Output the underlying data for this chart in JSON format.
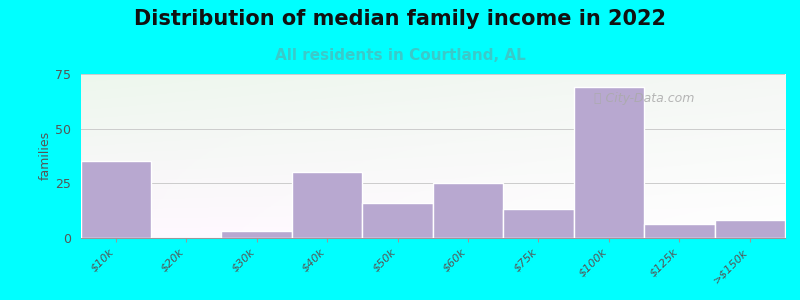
{
  "title": "Distribution of median family income in 2022",
  "subtitle": "All residents in Courtland, AL",
  "ylabel": "families",
  "background_color": "#00FFFF",
  "bar_color": "#b8a8d0",
  "bar_edge_color": "#ffffff",
  "categories": [
    "$10k",
    "$20k",
    "$30k",
    "$40k",
    "$50k",
    "$60k",
    "$75k",
    "$100k",
    "$125k",
    ">$150k"
  ],
  "values": [
    35,
    0,
    3,
    30,
    16,
    25,
    13,
    69,
    6,
    8
  ],
  "ylim": [
    0,
    75
  ],
  "yticks": [
    0,
    25,
    50,
    75
  ],
  "title_fontsize": 15,
  "subtitle_fontsize": 11,
  "subtitle_color": "#3acaca",
  "ylabel_fontsize": 9,
  "tick_fontsize": 8,
  "watermark_text": "City-Data.com",
  "watermark_color": "#aaaaaa",
  "plot_bg_left_color": "#e8f5e8",
  "plot_bg_right_color": "#f0f5f5"
}
